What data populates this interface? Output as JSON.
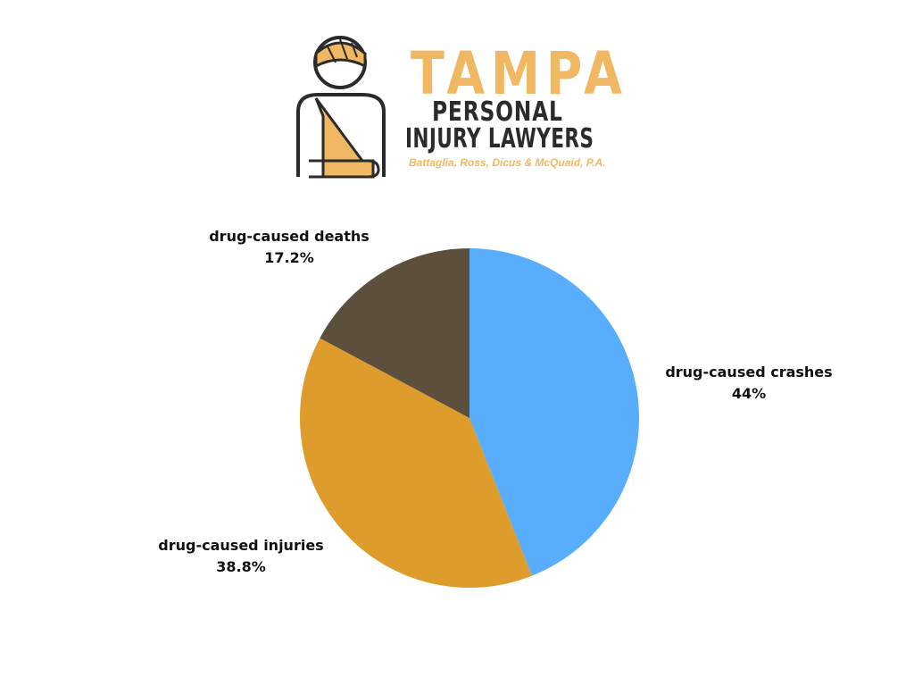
{
  "logo": {
    "title": "TAMPA",
    "line2": "PERSONAL",
    "line3": "INJURY LAWYERS",
    "firm": "Battaglia, Ross, Dicus & McQuaid, P.A."
  },
  "colors": {
    "crashes": "#58adfc",
    "injuries": "#dd9c2c",
    "deaths": "#5c4f3c",
    "logo_orange": "#f0b862",
    "logo_dark": "#2b2b2b"
  },
  "chart_data": {
    "type": "pie",
    "title": "",
    "legend": "none",
    "slices": [
      {
        "label": "drug-caused crashes",
        "value": 44,
        "value_label": "44%",
        "color": "#58adfc"
      },
      {
        "label": "drug-caused injuries",
        "value": 38.8,
        "value_label": "38.8%",
        "color": "#dd9c2c"
      },
      {
        "label": "drug-caused deaths",
        "value": 17.2,
        "value_label": "17.2%",
        "color": "#5c4f3c"
      }
    ]
  }
}
